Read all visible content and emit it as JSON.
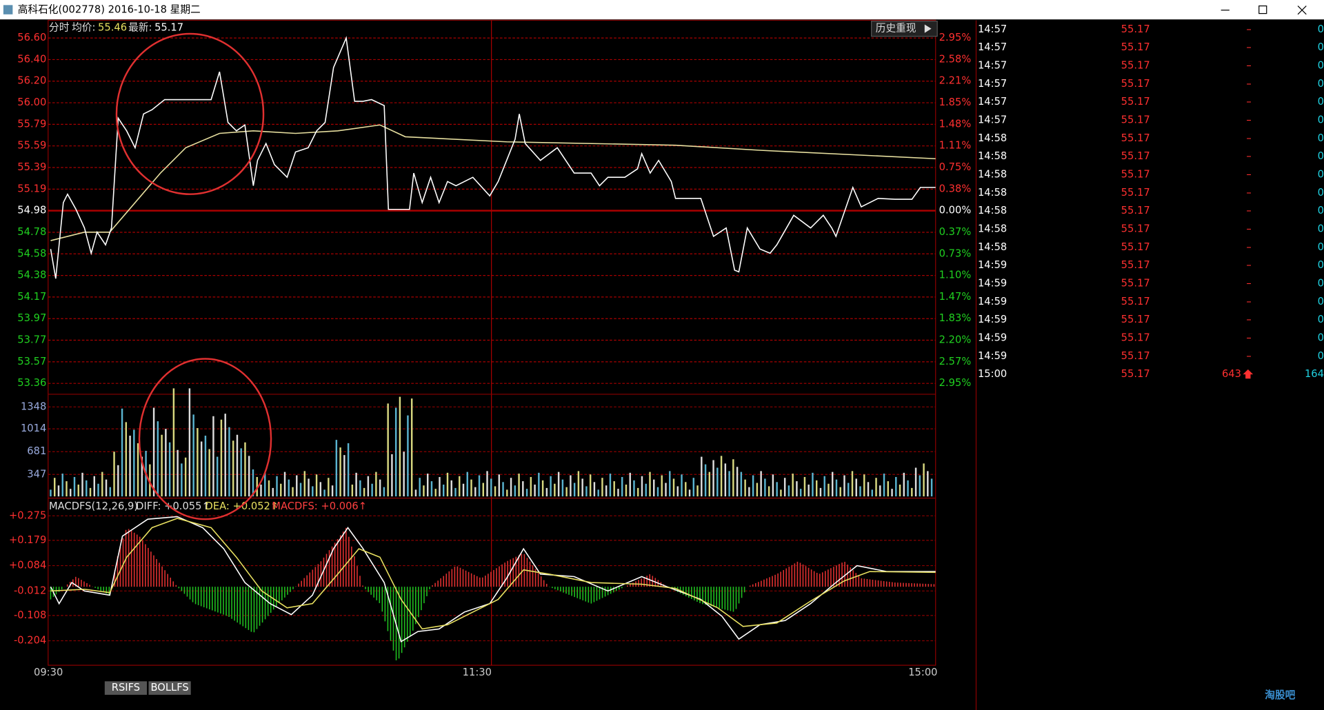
{
  "window": {
    "title": "高科石化(002778) 2016-10-18 星期二"
  },
  "header": {
    "mode": "分时",
    "avg_label": "均价:",
    "avg": "55.46",
    "last_label": "最新:",
    "last": "55.17",
    "button": "历史重现"
  },
  "price_axis": [
    "56.60",
    "56.40",
    "56.20",
    "56.00",
    "55.79",
    "55.59",
    "55.39",
    "55.19",
    "54.98",
    "54.78",
    "54.58",
    "54.38",
    "54.17",
    "53.97",
    "53.77",
    "53.57",
    "53.36"
  ],
  "percent_axis": [
    "2.95%",
    "2.58%",
    "2.21%",
    "1.85%",
    "1.48%",
    "1.11%",
    "0.75%",
    "0.38%",
    "0.00%",
    "0.37%",
    "0.73%",
    "1.10%",
    "1.47%",
    "1.83%",
    "2.20%",
    "2.57%",
    "2.95%"
  ],
  "volume_axis": [
    "1348",
    "1014",
    "681",
    "347"
  ],
  "macd": {
    "name": "MACDFS(12,26,9)",
    "diff": "DIFF: +0.055↑",
    "dea": "DEA: +0.052↑",
    "hist": "MACDFS: +0.006↑",
    "axis": [
      "+0.275",
      "+0.179",
      "+0.084",
      "-0.012",
      "-0.108",
      "-0.204"
    ]
  },
  "time_axis": [
    "09:30",
    "11:30",
    "15:00"
  ],
  "tabs": [
    "RSIFS",
    "BOLLFS"
  ],
  "trades": [
    [
      "14:57",
      "55.17",
      "–",
      "0"
    ],
    [
      "14:57",
      "55.17",
      "–",
      "0"
    ],
    [
      "14:57",
      "55.17",
      "–",
      "0"
    ],
    [
      "14:57",
      "55.17",
      "–",
      "0"
    ],
    [
      "14:57",
      "55.17",
      "–",
      "0"
    ],
    [
      "14:57",
      "55.17",
      "–",
      "0"
    ],
    [
      "14:58",
      "55.17",
      "–",
      "0"
    ],
    [
      "14:58",
      "55.17",
      "–",
      "0"
    ],
    [
      "14:58",
      "55.17",
      "–",
      "0"
    ],
    [
      "14:58",
      "55.17",
      "–",
      "0"
    ],
    [
      "14:58",
      "55.17",
      "–",
      "0"
    ],
    [
      "14:58",
      "55.17",
      "–",
      "0"
    ],
    [
      "14:58",
      "55.17",
      "–",
      "0"
    ],
    [
      "14:59",
      "55.17",
      "–",
      "0"
    ],
    [
      "14:59",
      "55.17",
      "–",
      "0"
    ],
    [
      "14:59",
      "55.17",
      "–",
      "0"
    ],
    [
      "14:59",
      "55.17",
      "–",
      "0"
    ],
    [
      "14:59",
      "55.17",
      "–",
      "0"
    ],
    [
      "14:59",
      "55.17",
      "–",
      "0"
    ],
    [
      "15:00",
      "55.17",
      "643",
      "164"
    ]
  ],
  "logo": "淘股吧"
}
